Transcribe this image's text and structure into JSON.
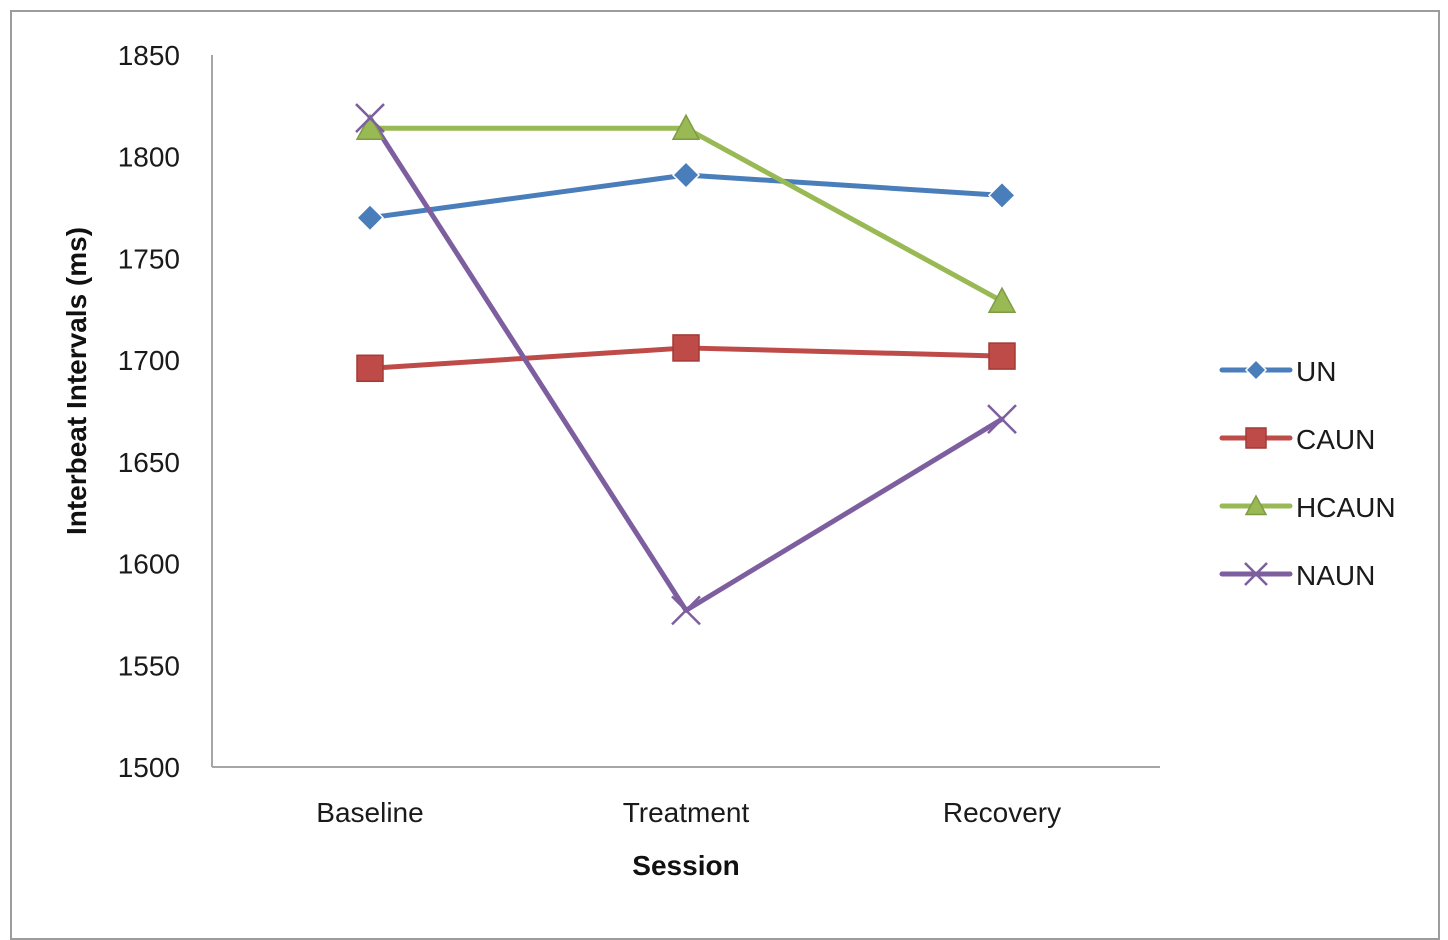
{
  "chart_data": {
    "type": "line",
    "title": "",
    "xlabel": "Session",
    "ylabel": "Interbeat Intervals (ms)",
    "categories": [
      "Baseline",
      "Treatment",
      "Recovery"
    ],
    "ylim": [
      1500,
      1850
    ],
    "yticks": [
      "1500",
      "1550",
      "1600",
      "1650",
      "1700",
      "1750",
      "1800",
      "1850"
    ],
    "grid": false,
    "legend_position": "right",
    "series": [
      {
        "name": "UN",
        "values": [
          1770,
          1791,
          1781
        ],
        "color": "#4a7ebb",
        "marker": "diamond"
      },
      {
        "name": "CAUN",
        "values": [
          1696,
          1706,
          1702
        ],
        "color": "#be4b48",
        "marker": "square"
      },
      {
        "name": "HCAUN",
        "values": [
          1814,
          1814,
          1729
        ],
        "color": "#98b954",
        "marker": "triangle"
      },
      {
        "name": "NAUN",
        "values": [
          1819,
          1577,
          1671
        ],
        "color": "#7d5fa0",
        "marker": "x"
      }
    ]
  }
}
